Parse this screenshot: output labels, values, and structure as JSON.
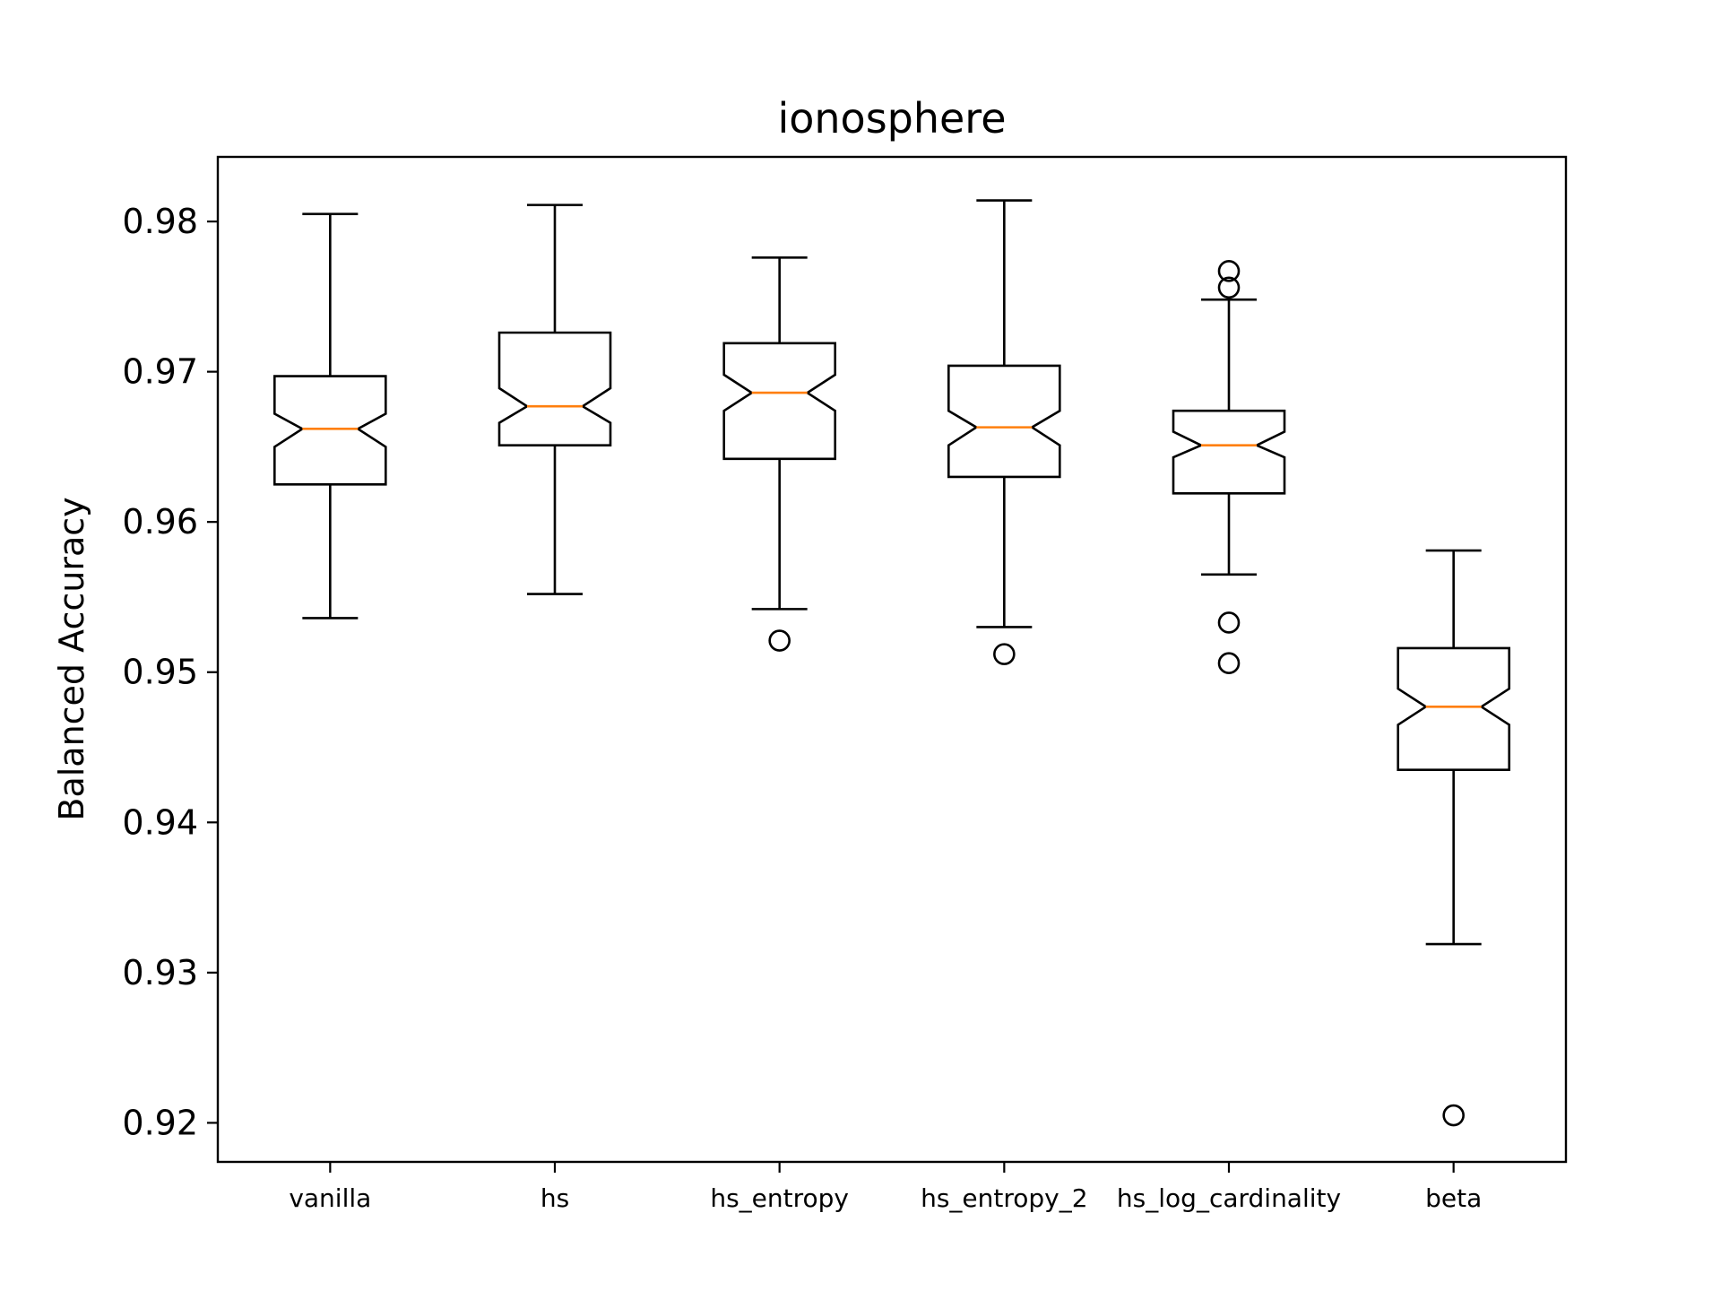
{
  "chart_data": {
    "type": "boxplot",
    "notched": true,
    "title": "ionosphere",
    "xlabel": "",
    "ylabel": "Balanced Accuracy",
    "ylim": [
      0.9174,
      0.9843
    ],
    "yticks": [
      "0.92",
      "0.93",
      "0.94",
      "0.95",
      "0.96",
      "0.97",
      "0.98"
    ],
    "grid": false,
    "legend": "none",
    "colors": {
      "box": "#000000",
      "median": "#ff7f0e",
      "flier": "#000000"
    },
    "categories": [
      "vanilla",
      "hs",
      "hs_entropy",
      "hs_entropy_2",
      "hs_log_cardinality",
      "beta"
    ],
    "boxes": [
      {
        "label": "vanilla",
        "whislo": 0.9536,
        "q1": 0.9625,
        "med": 0.9662,
        "q3": 0.9697,
        "whishi": 0.9805,
        "notch_lo": 0.965,
        "notch_hi": 0.9672,
        "fliers": []
      },
      {
        "label": "hs",
        "whislo": 0.9552,
        "q1": 0.9651,
        "med": 0.9677,
        "q3": 0.9726,
        "whishi": 0.9811,
        "notch_lo": 0.9666,
        "notch_hi": 0.9689,
        "fliers": []
      },
      {
        "label": "hs_entropy",
        "whislo": 0.9542,
        "q1": 0.9642,
        "med": 0.9686,
        "q3": 0.9719,
        "whishi": 0.9776,
        "notch_lo": 0.9674,
        "notch_hi": 0.9698,
        "fliers": [
          0.9521
        ]
      },
      {
        "label": "hs_entropy_2",
        "whislo": 0.953,
        "q1": 0.963,
        "med": 0.9663,
        "q3": 0.9704,
        "whishi": 0.9814,
        "notch_lo": 0.9651,
        "notch_hi": 0.9674,
        "fliers": [
          0.9512
        ]
      },
      {
        "label": "hs_log_cardinality",
        "whislo": 0.9565,
        "q1": 0.9619,
        "med": 0.9651,
        "q3": 0.9674,
        "whishi": 0.9748,
        "notch_lo": 0.9643,
        "notch_hi": 0.966,
        "fliers": [
          0.9767,
          0.9756,
          0.9533,
          0.9506
        ]
      },
      {
        "label": "beta",
        "whislo": 0.9319,
        "q1": 0.9435,
        "med": 0.9477,
        "q3": 0.9516,
        "whishi": 0.9581,
        "notch_lo": 0.9465,
        "notch_hi": 0.9489,
        "fliers": [
          0.9205
        ]
      }
    ]
  }
}
